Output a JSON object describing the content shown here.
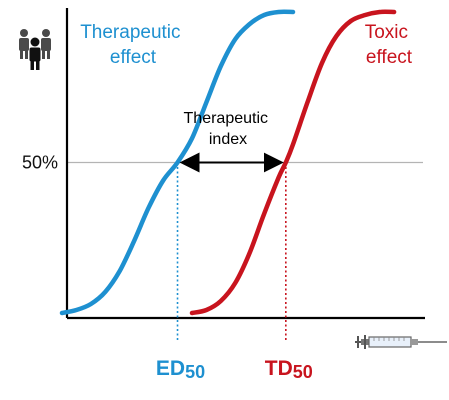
{
  "chart_data": {
    "type": "line",
    "title": "",
    "xlabel": "",
    "ylabel": "",
    "ylim": [
      0,
      100
    ],
    "y_ticks": [
      {
        "value": 50,
        "label": "50%"
      }
    ],
    "grid": false,
    "legend": "none",
    "series": [
      {
        "name": "Therapeutic effect",
        "label_lines": [
          "Therapeutic",
          "effect"
        ],
        "color": "#1e90d0",
        "ed50_value": 0.32,
        "x": [
          0.0,
          0.04,
          0.08,
          0.12,
          0.16,
          0.2,
          0.24,
          0.28,
          0.32,
          0.36,
          0.4,
          0.44,
          0.48,
          0.52,
          0.56,
          0.6,
          0.64
        ],
        "y": [
          0,
          1,
          3,
          7,
          14,
          24,
          35,
          44,
          50,
          58,
          70,
          82,
          91,
          96,
          99,
          100,
          100
        ]
      },
      {
        "name": "Toxic effect",
        "label_lines": [
          "Toxic",
          "effect"
        ],
        "color": "#c8141e",
        "ed50_value": 0.62,
        "x": [
          0.36,
          0.4,
          0.44,
          0.48,
          0.52,
          0.56,
          0.6,
          0.62,
          0.64,
          0.68,
          0.72,
          0.76,
          0.8,
          0.84,
          0.88,
          0.92
        ],
        "y": [
          0,
          1,
          4,
          10,
          20,
          33,
          45,
          50,
          56,
          70,
          83,
          92,
          97,
          99,
          100,
          100
        ]
      }
    ],
    "markers": [
      {
        "label_main": "ED",
        "label_sub": "50",
        "color": "#1e90d0",
        "x": 0.32
      },
      {
        "label_main": "TD",
        "label_sub": "50",
        "color": "#c8141e",
        "x": 0.62
      }
    ],
    "annotation": {
      "lines": [
        "Therapeutic",
        "index"
      ],
      "from_x": 0.32,
      "to_x": 0.62,
      "at_y": 50
    },
    "icons": {
      "y_axis": "people-icon",
      "x_axis": "syringe-icon"
    }
  }
}
